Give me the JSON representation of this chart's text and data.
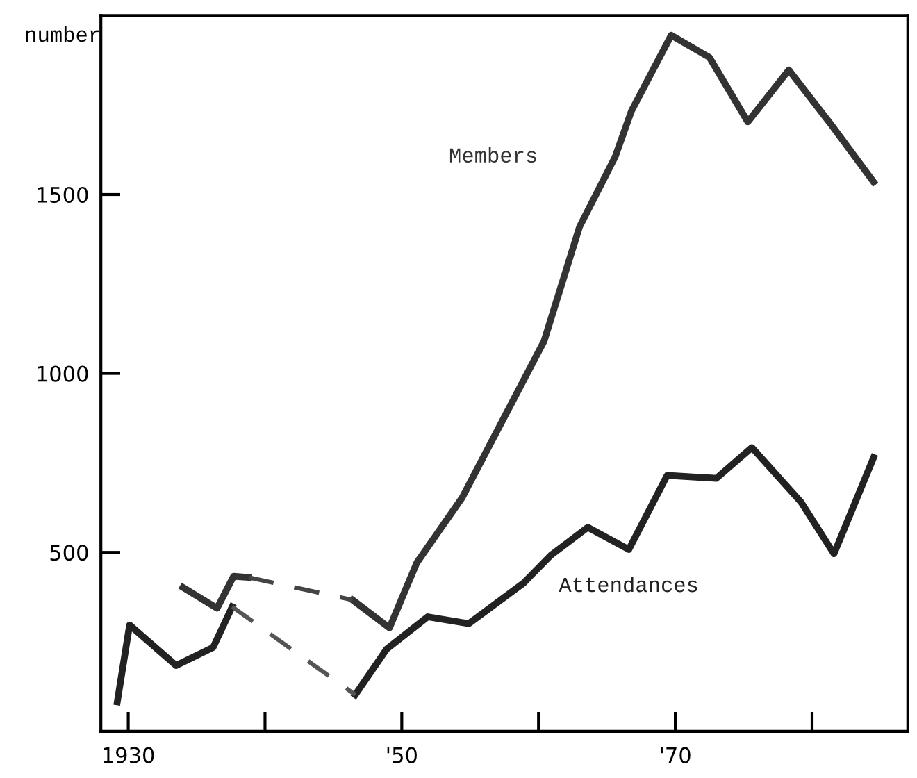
{
  "chart_data": {
    "type": "line",
    "ylabel": "number",
    "xlim": [
      1928,
      1987
    ],
    "ylim": [
      0,
      2000
    ],
    "xticks": [
      {
        "value": 1930,
        "label": "1930"
      },
      {
        "value": 1940,
        "label": null
      },
      {
        "value": 1950,
        "label": "'50"
      },
      {
        "value": 1960,
        "label": null
      },
      {
        "value": 1970,
        "label": "'70"
      },
      {
        "value": 1980,
        "label": null
      }
    ],
    "yticks": [
      500,
      1000,
      1500
    ],
    "grid": false,
    "legend": false,
    "marker": "none",
    "series": [
      {
        "name": "Members",
        "color": "#333333",
        "line_style": "solid",
        "x": [
          1934,
          1936.5,
          1937.7,
          1938.8,
          1942,
          1946.4,
          1949.1,
          1951.1,
          1954.4,
          1960.4,
          1963,
          1965.6,
          1966.8,
          1969.7,
          1972.5,
          1975.3,
          1978.3,
          1981.4,
          1984.5
        ],
        "values": [
          402,
          344,
          433,
          430,
          null,
          367,
          289,
          471,
          652,
          1090,
          1410,
          1605,
          1734,
          1945,
          1883,
          1703,
          1848,
          1695,
          1535
        ]
      },
      {
        "color": "#444444",
        "line_style": "dashed",
        "x": [
          1938.8,
          1946.4
        ],
        "values": [
          430,
          367
        ]
      },
      {
        "name": "Attendances",
        "color": "#222222",
        "line_style": "solid",
        "x": [
          1929.2,
          1930.1,
          1933.5,
          1936.2,
          1937.6,
          1942,
          1946.6,
          1948.9,
          1951.9,
          1954.9,
          1958.9,
          1960.9,
          1963.6,
          1966.6,
          1969.4,
          1973,
          1975.6,
          1979.2,
          1981.6,
          1984.5
        ],
        "values": [
          82,
          297,
          184,
          234,
          348,
          null,
          102,
          230,
          320,
          301,
          414,
          492,
          570,
          508,
          715,
          707,
          793,
          640,
          496,
          765
        ]
      },
      {
        "color": "#555555",
        "line_style": "dashed",
        "x": [
          1937.6,
          1946.6
        ],
        "values": [
          348,
          102
        ]
      }
    ]
  }
}
